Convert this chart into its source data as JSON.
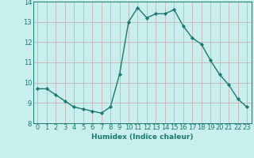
{
  "x": [
    0,
    1,
    2,
    3,
    4,
    5,
    6,
    7,
    8,
    9,
    10,
    11,
    12,
    13,
    14,
    15,
    16,
    17,
    18,
    19,
    20,
    21,
    22,
    23
  ],
  "y": [
    9.7,
    9.7,
    9.4,
    9.1,
    8.8,
    8.7,
    8.6,
    8.5,
    8.8,
    10.4,
    13.0,
    13.7,
    13.2,
    13.4,
    13.4,
    13.6,
    12.8,
    12.2,
    11.9,
    11.1,
    10.4,
    9.9,
    9.2,
    8.8
  ],
  "line_color": "#1a7a6e",
  "marker": "D",
  "marker_size": 2.2,
  "bg_color": "#c8eeee",
  "grid_color": "#c8a8a8",
  "xlabel": "Humidex (Indice chaleur)",
  "xlim": [
    -0.5,
    23.5
  ],
  "ylim": [
    8.0,
    14.0
  ],
  "xticks": [
    0,
    1,
    2,
    3,
    4,
    5,
    6,
    7,
    8,
    9,
    10,
    11,
    12,
    13,
    14,
    15,
    16,
    17,
    18,
    19,
    20,
    21,
    22,
    23
  ],
  "yticks": [
    8,
    9,
    10,
    11,
    12,
    13,
    14
  ],
  "xlabel_fontsize": 6.5,
  "tick_fontsize": 6.0,
  "line_width": 1.0
}
